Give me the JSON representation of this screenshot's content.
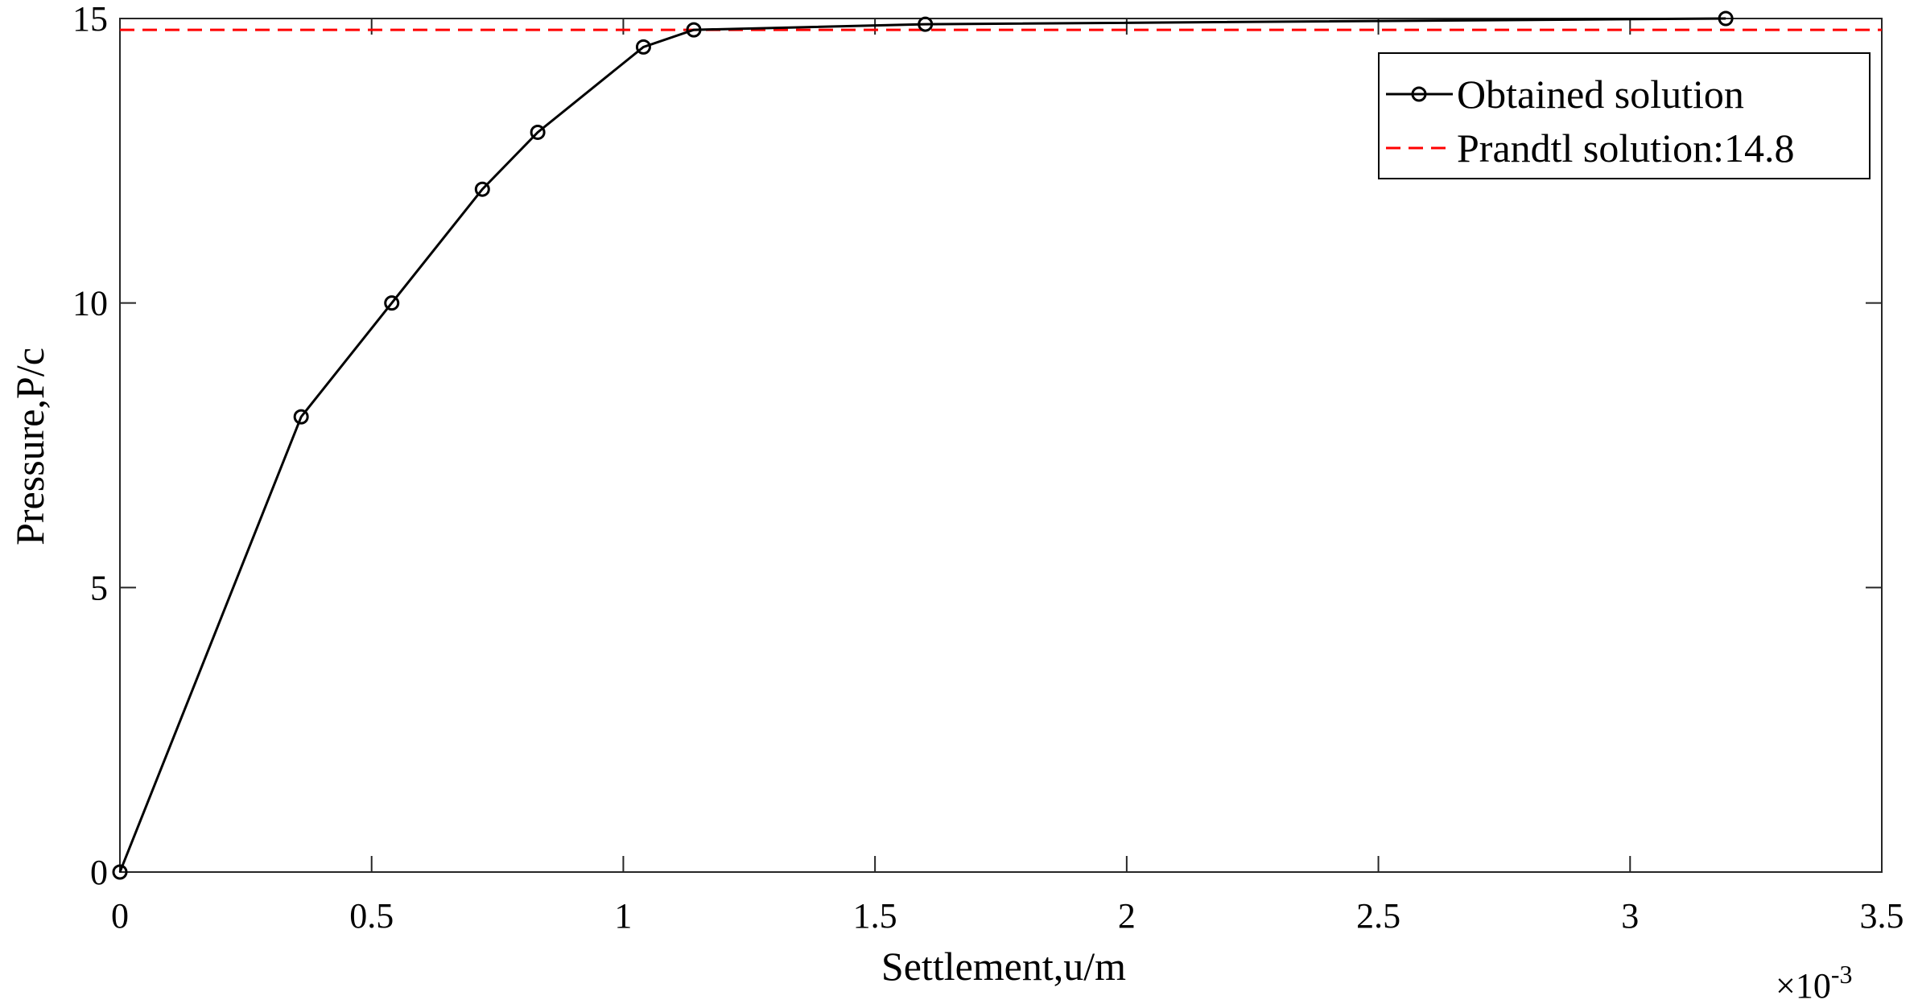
{
  "chart_data": {
    "type": "line",
    "title": "",
    "xlabel": "Settlement,u/m",
    "ylabel": "Pressure,P/c",
    "x_exponent_base": "×10",
    "x_exponent_power": "-3",
    "xlim": [
      0,
      3.5
    ],
    "ylim": [
      0,
      15
    ],
    "x_ticks": [
      0,
      0.5,
      1,
      1.5,
      2,
      2.5,
      3,
      3.5
    ],
    "x_tick_labels": [
      "0",
      "0.5",
      "1",
      "1.5",
      "2",
      "2.5",
      "3",
      "3.5"
    ],
    "y_ticks": [
      0,
      5,
      10,
      15
    ],
    "y_tick_labels": [
      "0",
      "5",
      "10",
      "15"
    ],
    "grid": false,
    "legend_position": "top-right",
    "series": [
      {
        "name": "Obtained solution",
        "color": "#000000",
        "line_style": "solid",
        "marker": "circle",
        "x": [
          0,
          0.36,
          0.54,
          0.72,
          0.83,
          1.04,
          1.14,
          1.6,
          3.19
        ],
        "y": [
          0,
          8,
          10,
          12,
          13,
          14.5,
          14.8,
          14.9,
          15
        ]
      },
      {
        "name": "Prandtl solution:14.8",
        "color": "#ff0000",
        "line_style": "dashed",
        "marker": "none",
        "x": [
          0,
          3.5
        ],
        "y": [
          14.8,
          14.8
        ]
      }
    ]
  }
}
